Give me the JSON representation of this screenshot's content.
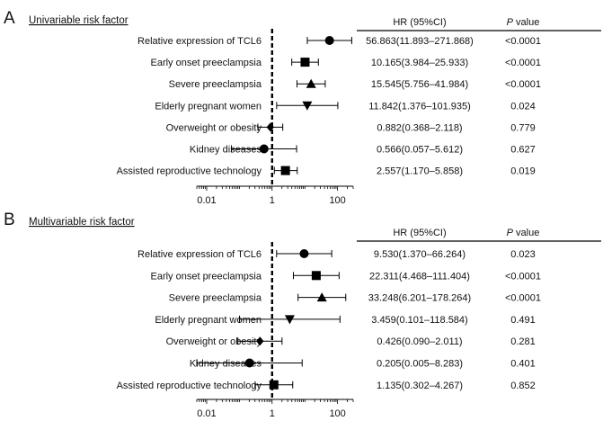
{
  "chart_data": [
    {
      "type": "forest",
      "panel_letter": "A",
      "heading": "Univariable risk factor",
      "table_headers": {
        "hr": "HR (95%CI)",
        "p": "value",
        "p_italic": "P"
      },
      "xscale": "log",
      "xlim": [
        0.005,
        300
      ],
      "xticks": [
        "0.01",
        "1",
        "100"
      ],
      "reference_line": 1,
      "rows": [
        {
          "label": "Relative expression of TCL6",
          "hr": 56.863,
          "lower": 11.893,
          "upper": 271.868,
          "text": "56.863(11.893–271.868)",
          "p": "<0.0001",
          "marker": "circle"
        },
        {
          "label": "Early onset preeclampsia",
          "hr": 10.165,
          "lower": 3.984,
          "upper": 25.933,
          "text": "10.165(3.984–25.933)",
          "p": "<0.0001",
          "marker": "square"
        },
        {
          "label": "Severe preeclampsia",
          "hr": 15.545,
          "lower": 5.756,
          "upper": 41.984,
          "text": "15.545(5.756–41.984)",
          "p": "<0.0001",
          "marker": "triangle-up"
        },
        {
          "label": "Elderly pregnant women",
          "hr": 11.842,
          "lower": 1.376,
          "upper": 101.935,
          "text": "11.842(1.376–101.935)",
          "p": "0.024",
          "marker": "triangle-down"
        },
        {
          "label": "Overweight or obesity",
          "hr": 0.882,
          "lower": 0.368,
          "upper": 2.118,
          "text": "0.882(0.368–2.118)",
          "p": "0.779",
          "marker": "diamond"
        },
        {
          "label": "Kidney diseases",
          "hr": 0.566,
          "lower": 0.057,
          "upper": 5.612,
          "text": "0.566(0.057–5.612)",
          "p": "0.627",
          "marker": "circle"
        },
        {
          "label": "Assisted reproductive technology",
          "hr": 2.557,
          "lower": 1.17,
          "upper": 5.858,
          "text": "2.557(1.170–5.858)",
          "p": "0.019",
          "marker": "square"
        }
      ]
    },
    {
      "type": "forest",
      "panel_letter": "B",
      "heading": "Multivariable risk factor",
      "table_headers": {
        "hr": "HR (95%CI)",
        "p": "value",
        "p_italic": "P"
      },
      "xscale": "log",
      "xlim": [
        0.005,
        300
      ],
      "xticks": [
        "0.01",
        "1",
        "100"
      ],
      "reference_line": 1,
      "rows": [
        {
          "label": "Relative expression of TCL6",
          "hr": 9.53,
          "lower": 1.37,
          "upper": 66.264,
          "text": "9.530(1.370–66.264)",
          "p": "0.023",
          "marker": "circle"
        },
        {
          "label": "Early onset preeclampsia",
          "hr": 22.311,
          "lower": 4.468,
          "upper": 111.404,
          "text": "22.311(4.468–111.404)",
          "p": "<0.0001",
          "marker": "square"
        },
        {
          "label": "Severe preeclampsia",
          "hr": 33.248,
          "lower": 6.201,
          "upper": 178.264,
          "text": "33.248(6.201–178.264)",
          "p": "<0.0001",
          "marker": "triangle-up"
        },
        {
          "label": "Elderly pregnant women",
          "hr": 3.459,
          "lower": 0.101,
          "upper": 118.584,
          "text": "3.459(0.101–118.584)",
          "p": "0.491",
          "marker": "triangle-down"
        },
        {
          "label": "Overweight or obesity",
          "hr": 0.426,
          "lower": 0.09,
          "upper": 2.011,
          "text": "0.426(0.090–2.011)",
          "p": "0.281",
          "marker": "diamond"
        },
        {
          "label": "Kidney diseases",
          "hr": 0.205,
          "lower": 0.005,
          "upper": 8.283,
          "text": "0.205(0.005–8.283)",
          "p": "0.401",
          "marker": "circle"
        },
        {
          "label": "Assisted reproductive technology",
          "hr": 1.135,
          "lower": 0.302,
          "upper": 4.267,
          "text": "1.135(0.302–4.267)",
          "p": "0.852",
          "marker": "square"
        }
      ]
    }
  ]
}
